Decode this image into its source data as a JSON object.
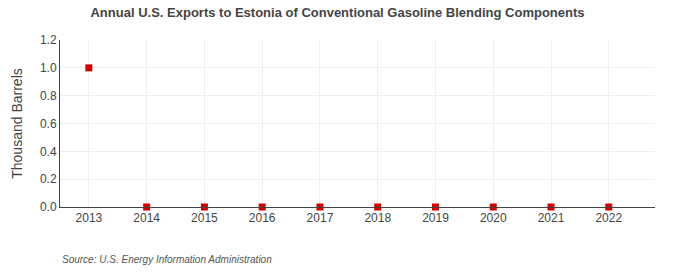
{
  "chart_data": {
    "type": "scatter",
    "title": "Annual U.S. Exports to Estonia of Conventional Gasoline Blending Components",
    "ylabel": "Thousand Barrels",
    "annotations": [
      "Source: U.S. Energy Information Administration"
    ],
    "x": [
      2013,
      2014,
      2015,
      2016,
      2017,
      2018,
      2019,
      2020,
      2021,
      2022
    ],
    "values": [
      1.0,
      0.0,
      0.0,
      0.0,
      0.0,
      0.0,
      0.0,
      0.0,
      0.0,
      0.0
    ],
    "color": "#CC0000",
    "marker": "square",
    "xlim": [
      2012.5,
      2022.8
    ],
    "xticks": [
      2013,
      2014,
      2015,
      2016,
      2017,
      2018,
      2019,
      2020,
      2021,
      2022
    ],
    "ylim": [
      0.0,
      1.2
    ],
    "yticks": [
      {
        "value": 0.0,
        "label": "0.0"
      },
      {
        "value": 0.2,
        "label": "0.2"
      },
      {
        "value": 0.4,
        "label": "0.4"
      },
      {
        "value": 0.6,
        "label": "0.6"
      },
      {
        "value": 0.8,
        "label": "0.8"
      },
      {
        "value": 1.0,
        "label": "1.0"
      },
      {
        "value": 1.2,
        "label": "1.2"
      }
    ],
    "grid": true
  }
}
